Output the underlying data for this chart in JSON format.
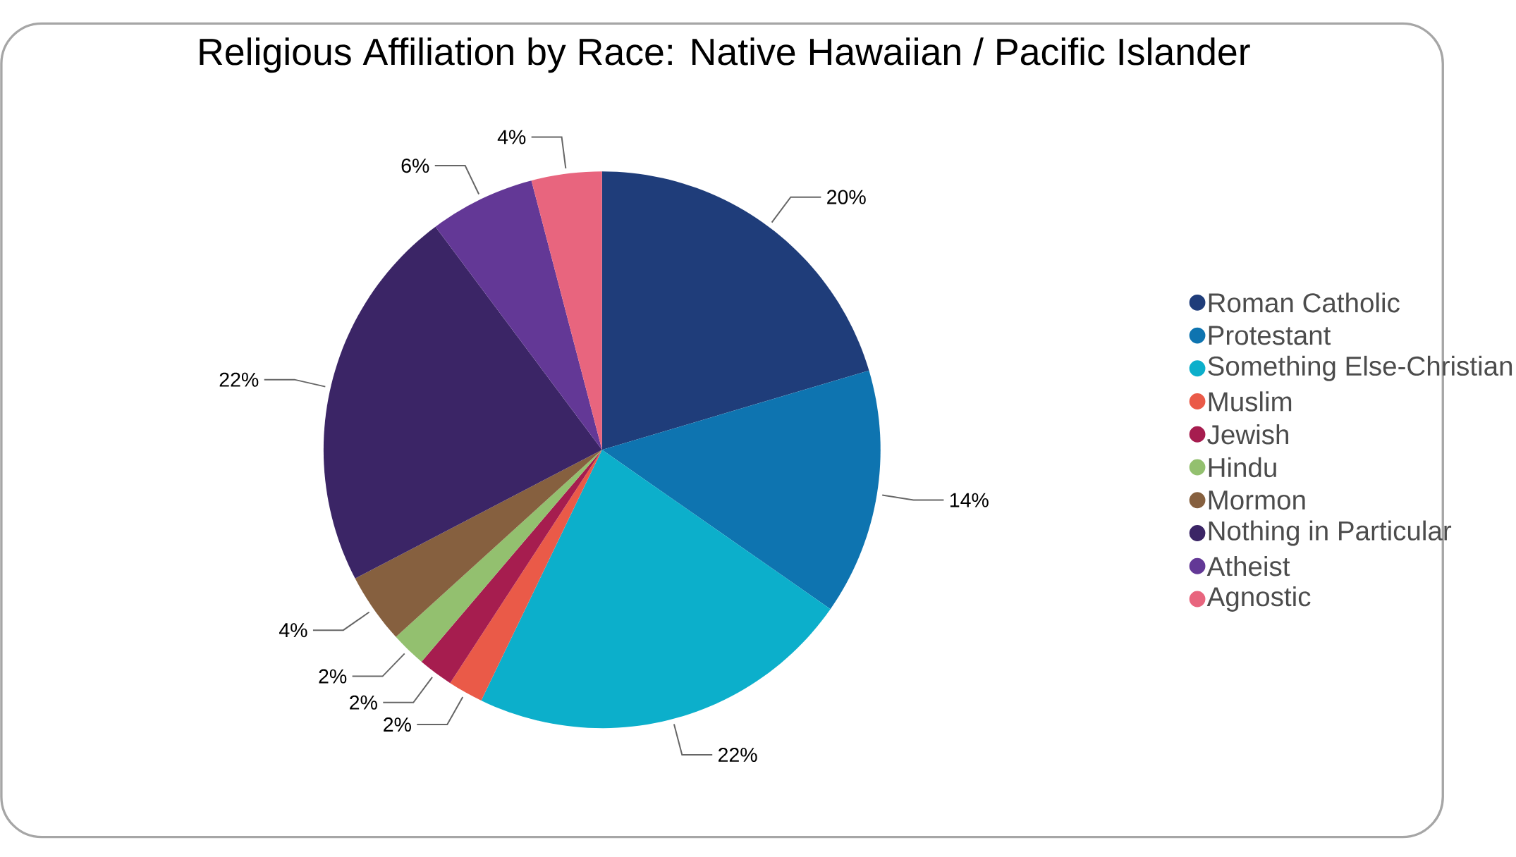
{
  "chart_data": {
    "type": "pie",
    "title": "Religious Affiliation by Race: Native Hawaiian / Pacific Islander",
    "categories": [
      "Roman Catholic",
      "Protestant",
      "Something Else-Christian",
      "Muslim",
      "Jewish",
      "Hindu",
      "Mormon",
      "Nothing in Particular",
      "Atheist",
      "Agnostic"
    ],
    "values": [
      20,
      14,
      22,
      2,
      2,
      2,
      4,
      22,
      6,
      4
    ],
    "colors": [
      "#1f3d7a",
      "#0e74b0",
      "#0cafcb",
      "#ea5a48",
      "#a61d4f",
      "#93c06f",
      "#86603f",
      "#3b2566",
      "#633896",
      "#e8657e"
    ],
    "value_labels": [
      "20%",
      "14%",
      "22%",
      "2%",
      "2%",
      "2%",
      "4%",
      "22%",
      "6%",
      "4%"
    ],
    "legend": "right"
  }
}
